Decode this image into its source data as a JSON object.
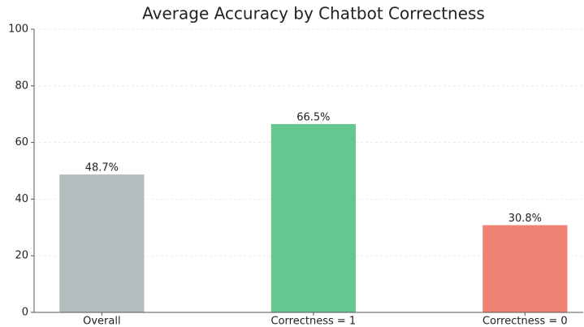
{
  "chart_data": {
    "type": "bar",
    "title": "Average Accuracy by Chatbot Correctness",
    "categories": [
      "Overall",
      "Correctness = 1",
      "Correctness = 0"
    ],
    "values": [
      48.7,
      66.5,
      30.8
    ],
    "value_labels": [
      "48.7%",
      "66.5%",
      "30.8%"
    ],
    "colors": [
      "#b3bfbe",
      "#66c690",
      "#ee8174"
    ],
    "ylim": [
      0,
      100
    ],
    "yticks": [
      0,
      20,
      40,
      60,
      80,
      100
    ],
    "grid": true
  }
}
